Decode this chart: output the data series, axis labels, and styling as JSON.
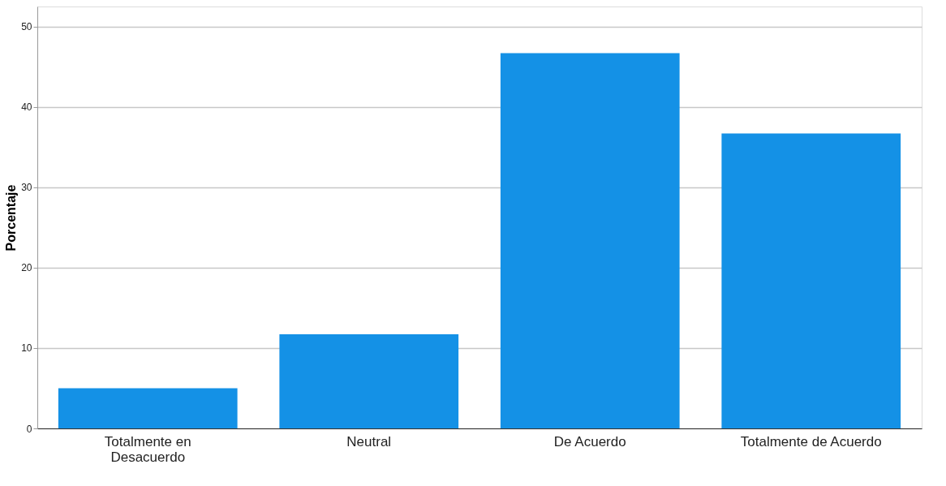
{
  "chart_data": {
    "type": "bar",
    "ylabel": "Porcentaje",
    "categories": [
      "Totalmente en\nDesacuerdo",
      "Neutral",
      "De Acuerdo",
      "Totalmente de Acuerdo"
    ],
    "values": [
      5.0,
      11.7,
      46.7,
      36.7
    ],
    "color": "#1491e6",
    "ylim": [
      0,
      52.5
    ],
    "yticks": [
      0,
      10,
      20,
      30,
      40,
      50
    ],
    "grid": "y"
  }
}
